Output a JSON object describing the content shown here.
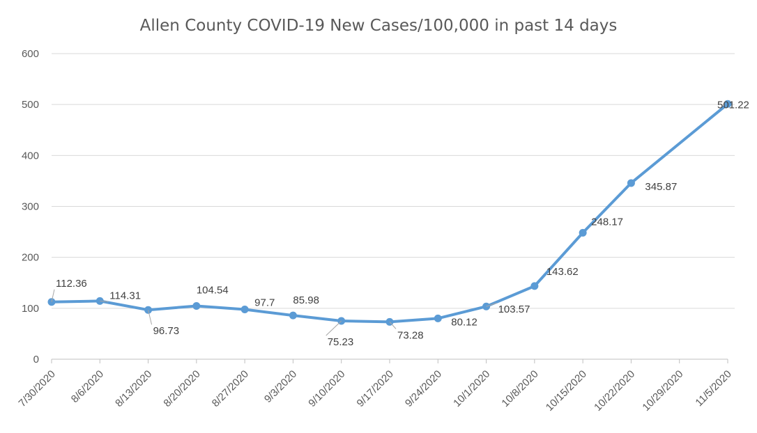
{
  "chart_data": {
    "type": "line",
    "title": "Allen County COVID-19 New Cases/100,000 in past 14 days",
    "xlabel": "",
    "ylabel": "",
    "ylim": [
      0,
      600
    ],
    "yticks": [
      0,
      100,
      200,
      300,
      400,
      500,
      600
    ],
    "grid": true,
    "legend": "none",
    "categories": [
      "7/30/2020",
      "8/6/2020",
      "8/13/2020",
      "8/20/2020",
      "8/27/2020",
      "9/3/2020",
      "9/10/2020",
      "9/17/2020",
      "9/24/2020",
      "10/1/2020",
      "10/8/2020",
      "10/15/2020",
      "10/22/2020",
      "10/29/2020",
      "11/5/2020"
    ],
    "series": [
      {
        "color": "#5b9bd5",
        "points": [
          {
            "x": "7/30/2020",
            "y": 112.36,
            "label": "112.36"
          },
          {
            "x": "8/6/2020",
            "y": 114.31,
            "label": "114.31"
          },
          {
            "x": "8/13/2020",
            "y": 96.73,
            "label": "96.73"
          },
          {
            "x": "8/20/2020",
            "y": 104.54,
            "label": "104.54"
          },
          {
            "x": "8/27/2020",
            "y": 97.7,
            "label": "97.7"
          },
          {
            "x": "9/3/2020",
            "y": 85.98,
            "label": "85.98"
          },
          {
            "x": "9/10/2020",
            "y": 75.23,
            "label": "75.23"
          },
          {
            "x": "9/17/2020",
            "y": 73.28,
            "label": "73.28"
          },
          {
            "x": "9/24/2020",
            "y": 80.12,
            "label": "80.12"
          },
          {
            "x": "10/1/2020",
            "y": 103.57,
            "label": "103.57"
          },
          {
            "x": "10/8/2020",
            "y": 143.62,
            "label": "143.62"
          },
          {
            "x": "10/15/2020",
            "y": 248.17,
            "label": "248.17"
          },
          {
            "x": "10/22/2020",
            "y": 345.87,
            "label": "345.87"
          },
          {
            "x": "11/5/2020",
            "y": 501.22,
            "label": "501.22"
          }
        ]
      }
    ]
  }
}
